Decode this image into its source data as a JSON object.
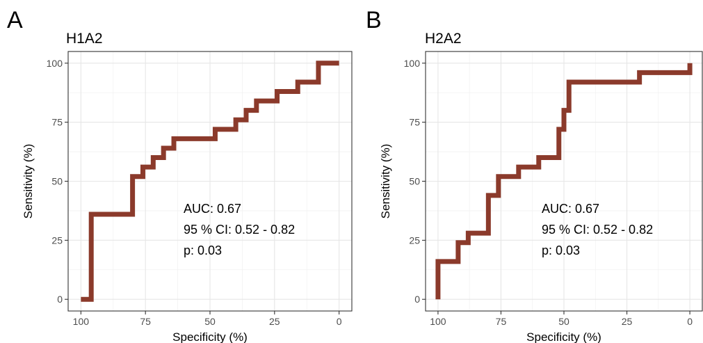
{
  "chart_data": [
    {
      "panel_letter": "A",
      "type": "line",
      "title": "H1A2",
      "xlabel": "Specificity (%)",
      "ylabel": "Sensitivity (%)",
      "xlim": [
        100,
        0
      ],
      "ylim": [
        0,
        100
      ],
      "x_reversed": true,
      "grid": true,
      "x_ticks": [
        100,
        75,
        50,
        25,
        0
      ],
      "y_ticks": [
        0,
        25,
        50,
        75,
        100
      ],
      "x_tick_labels": [
        "100",
        "75",
        "50",
        "25",
        "0"
      ],
      "y_tick_labels": [
        "0",
        "25",
        "50",
        "75",
        "100"
      ],
      "color": "#8b3a2b",
      "annotations": [
        "AUC: 0.67",
        "95 % CI: 0.52 - 0.82",
        "p: 0.03"
      ],
      "roc_points": [
        [
          100,
          0
        ],
        [
          96,
          0
        ],
        [
          96,
          36
        ],
        [
          80,
          36
        ],
        [
          80,
          52
        ],
        [
          76,
          52
        ],
        [
          76,
          56
        ],
        [
          72,
          56
        ],
        [
          72,
          60
        ],
        [
          68,
          60
        ],
        [
          68,
          64
        ],
        [
          64,
          64
        ],
        [
          64,
          68
        ],
        [
          48,
          68
        ],
        [
          48,
          72
        ],
        [
          40,
          72
        ],
        [
          40,
          76
        ],
        [
          36,
          76
        ],
        [
          36,
          80
        ],
        [
          32,
          80
        ],
        [
          32,
          84
        ],
        [
          24,
          84
        ],
        [
          24,
          88
        ],
        [
          16,
          88
        ],
        [
          16,
          92
        ],
        [
          8,
          92
        ],
        [
          8,
          100
        ],
        [
          0,
          100
        ]
      ]
    },
    {
      "panel_letter": "B",
      "type": "line",
      "title": "H2A2",
      "xlabel": "Specificity (%)",
      "ylabel": "Sensitivity (%)",
      "xlim": [
        100,
        0
      ],
      "ylim": [
        0,
        100
      ],
      "x_reversed": true,
      "grid": true,
      "x_ticks": [
        100,
        75,
        50,
        25,
        0
      ],
      "y_ticks": [
        0,
        25,
        50,
        75,
        100
      ],
      "x_tick_labels": [
        "100",
        "75",
        "50",
        "25",
        "0"
      ],
      "y_tick_labels": [
        "0",
        "25",
        "50",
        "75",
        "100"
      ],
      "color": "#8b3a2b",
      "annotations": [
        "AUC: 0.67",
        "95 % CI: 0.52 - 0.82",
        "p: 0.03"
      ],
      "roc_points": [
        [
          100,
          0
        ],
        [
          100,
          16
        ],
        [
          92,
          16
        ],
        [
          92,
          24
        ],
        [
          88,
          24
        ],
        [
          88,
          28
        ],
        [
          80,
          28
        ],
        [
          80,
          44
        ],
        [
          76,
          44
        ],
        [
          76,
          52
        ],
        [
          68,
          52
        ],
        [
          68,
          56
        ],
        [
          60,
          56
        ],
        [
          60,
          60
        ],
        [
          52,
          60
        ],
        [
          52,
          72
        ],
        [
          50,
          72
        ],
        [
          50,
          80
        ],
        [
          48,
          80
        ],
        [
          48,
          92
        ],
        [
          20,
          92
        ],
        [
          20,
          96
        ],
        [
          0,
          96
        ],
        [
          0,
          100
        ]
      ]
    }
  ]
}
